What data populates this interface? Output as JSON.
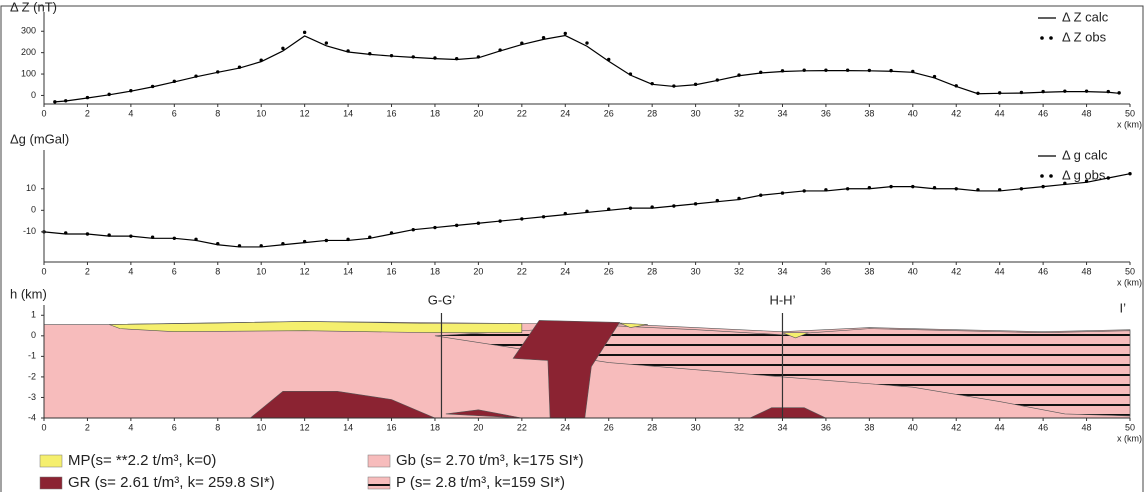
{
  "chart_data": [
    {
      "type": "line",
      "ylabel": "Δ Z (nT)",
      "xlabel": "x (km)",
      "x": [
        0.5,
        1,
        2,
        3,
        4,
        5,
        6,
        7,
        8,
        9,
        10,
        11,
        12,
        13,
        14,
        15,
        16,
        17,
        18,
        19,
        20,
        21,
        22,
        23,
        24,
        25,
        26,
        27,
        28,
        29,
        30,
        31,
        32,
        33,
        34,
        35,
        36,
        37,
        38,
        39,
        40,
        41,
        42,
        43,
        44,
        45,
        46,
        47,
        48,
        49,
        49.5
      ],
      "series": [
        {
          "name": "Δ Z calc",
          "color": "#000000",
          "style": "line",
          "values": [
            -30,
            -26,
            -12,
            3,
            20,
            40,
            63,
            87,
            108,
            128,
            158,
            208,
            278,
            232,
            203,
            192,
            184,
            178,
            172,
            168,
            176,
            208,
            238,
            262,
            280,
            230,
            160,
            95,
            52,
            42,
            50,
            70,
            92,
            105,
            112,
            115,
            116,
            116,
            115,
            113,
            108,
            82,
            42,
            8,
            10,
            11,
            15,
            18,
            18,
            15,
            10
          ]
        },
        {
          "name": "Δ Z obs",
          "color": "#000000",
          "style": "dots",
          "values": [
            -30,
            -25,
            -10,
            5,
            22,
            42,
            66,
            90,
            110,
            132,
            165,
            220,
            295,
            245,
            208,
            195,
            186,
            180,
            175,
            172,
            180,
            212,
            244,
            270,
            290,
            245,
            168,
            100,
            55,
            44,
            52,
            72,
            95,
            108,
            115,
            118,
            118,
            118,
            117,
            116,
            112,
            88,
            45,
            10,
            12,
            14,
            18,
            20,
            20,
            18,
            12
          ]
        }
      ],
      "xlim": [
        0,
        50
      ],
      "xticks": [
        0,
        2,
        4,
        6,
        8,
        10,
        12,
        14,
        16,
        18,
        20,
        22,
        24,
        26,
        28,
        30,
        32,
        34,
        36,
        38,
        40,
        42,
        44,
        46,
        48,
        50
      ],
      "ylim": [
        -40,
        390
      ],
      "yticks": [
        0,
        100,
        200,
        300
      ],
      "legend": "upper right"
    },
    {
      "type": "line",
      "ylabel": "Δg (mGal)",
      "xlabel": "x (km)",
      "x": [
        0,
        1,
        2,
        3,
        4,
        5,
        6,
        7,
        8,
        9,
        10,
        11,
        12,
        13,
        14,
        15,
        16,
        17,
        18,
        19,
        20,
        21,
        22,
        23,
        24,
        25,
        26,
        27,
        28,
        29,
        30,
        31,
        32,
        33,
        34,
        35,
        36,
        37,
        38,
        39,
        40,
        41,
        42,
        43,
        44,
        45,
        46,
        47,
        48,
        49,
        50
      ],
      "series": [
        {
          "name": "Δ g calc",
          "color": "#000000",
          "style": "line",
          "values": [
            -10,
            -11,
            -11,
            -12,
            -12,
            -13,
            -13,
            -14,
            -16,
            -17,
            -17,
            -16,
            -15,
            -14,
            -14,
            -13,
            -11,
            -9,
            -8,
            -7,
            -6,
            -5,
            -4,
            -3,
            -2,
            -1,
            0,
            1,
            1,
            2,
            3,
            4,
            5,
            7,
            8,
            9,
            9,
            10,
            10,
            11,
            11,
            10,
            10,
            9,
            9,
            10,
            11,
            12,
            13,
            15,
            17
          ]
        },
        {
          "name": "Δ g obs",
          "color": "#000000",
          "style": "dots",
          "values": [
            -10,
            -10.5,
            -11,
            -11.5,
            -12,
            -12.5,
            -13,
            -13.5,
            -15.5,
            -16.5,
            -16.5,
            -15.5,
            -14.5,
            -14,
            -13.5,
            -12.5,
            -10.5,
            -9,
            -8,
            -7,
            -6,
            -5,
            -4,
            -3,
            -1.5,
            -0.5,
            0.5,
            1,
            1.5,
            2,
            3,
            4.5,
            5.5,
            7,
            8,
            9,
            9.5,
            10,
            10.5,
            11,
            11,
            10.5,
            10,
            9.5,
            9.5,
            10,
            11,
            12.5,
            13.5,
            15,
            17
          ]
        }
      ],
      "xlim": [
        0,
        50
      ],
      "xticks": [
        0,
        2,
        4,
        6,
        8,
        10,
        12,
        14,
        16,
        18,
        20,
        22,
        24,
        26,
        28,
        30,
        32,
        34,
        36,
        38,
        40,
        42,
        44,
        46,
        48,
        50
      ],
      "ylim": [
        -24,
        28
      ],
      "yticks": [
        10,
        0,
        -10
      ],
      "legend": "upper right"
    },
    {
      "type": "section",
      "ylabel": "h (km)",
      "xlabel": "x (km)",
      "xlim": [
        0,
        50
      ],
      "xticks": [
        0,
        2,
        4,
        6,
        8,
        10,
        12,
        14,
        16,
        18,
        20,
        22,
        24,
        26,
        28,
        30,
        32,
        34,
        36,
        38,
        40,
        42,
        44,
        46,
        48,
        50
      ],
      "ylim": [
        -4,
        1.5
      ],
      "yticks": [
        1,
        0,
        -1,
        -2,
        -3,
        -4
      ],
      "units": [
        {
          "name": "Gb (s= 2.70 t/m³, k=175 SI*)",
          "color": "#f7bcbc",
          "bodies": [
            [
              [
                0,
                0.55
              ],
              [
                3,
                0.55
              ],
              [
                12,
                0.7
              ],
              [
                22,
                0.6
              ],
              [
                26,
                0.6
              ],
              [
                30,
                0.4
              ],
              [
                34,
                0.2
              ],
              [
                38,
                0.4
              ],
              [
                42,
                0.3
              ],
              [
                46,
                0.2
              ],
              [
                50,
                0.3
              ],
              [
                50,
                -4
              ],
              [
                0,
                -4
              ]
            ]
          ]
        },
        {
          "name": "P (s= 2.8 t/m³, k=159 SI*)",
          "color": "#f7bcbc",
          "pattern": "hatch",
          "bodies": [
            [
              [
                18,
                0
              ],
              [
                26,
                0.5
              ],
              [
                30,
                0.3
              ],
              [
                34,
                0.05
              ],
              [
                38,
                0.35
              ],
              [
                42,
                0.25
              ],
              [
                46,
                0.15
              ],
              [
                50,
                0.25
              ],
              [
                50,
                -3.9
              ],
              [
                47,
                -3.8
              ],
              [
                44,
                -3.2
              ],
              [
                40,
                -2.5
              ],
              [
                34,
                -2
              ],
              [
                26,
                -1.3
              ]
            ]
          ]
        },
        {
          "name": "MP(s= **2.2 t/m³, k=0)",
          "color": "#f5ef6e",
          "bodies": [
            [
              [
                3,
                0.55
              ],
              [
                8,
                0.62
              ],
              [
                12,
                0.7
              ],
              [
                18,
                0.6
              ],
              [
                22,
                0.6
              ],
              [
                22,
                0.15
              ],
              [
                18,
                0.15
              ],
              [
                12,
                0.25
              ],
              [
                6,
                0.2
              ],
              [
                3.5,
                0.35
              ]
            ],
            [
              [
                26.5,
                0.62
              ],
              [
                27.8,
                0.55
              ],
              [
                27,
                0.4
              ]
            ],
            [
              [
                34,
                0.15
              ],
              [
                35.2,
                0.15
              ],
              [
                34.6,
                -0.1
              ]
            ]
          ]
        },
        {
          "name": "GR (s= 2.61 t/m³, k= 259.8 SI*)",
          "color": "#8b2332",
          "bodies": [
            [
              [
                22.8,
                0.75
              ],
              [
                26.5,
                0.65
              ],
              [
                25.2,
                -1.5
              ],
              [
                24.9,
                -4
              ],
              [
                23.3,
                -4
              ],
              [
                23.2,
                -1.2
              ],
              [
                21.6,
                -1.1
              ]
            ],
            [
              [
                9.5,
                -4
              ],
              [
                11,
                -2.7
              ],
              [
                13.5,
                -2.7
              ],
              [
                16,
                -3.1
              ],
              [
                18,
                -4
              ]
            ],
            [
              [
                18.5,
                -3.8
              ],
              [
                20,
                -3.6
              ],
              [
                22,
                -4
              ]
            ],
            [
              [
                32.5,
                -4
              ],
              [
                33.5,
                -3.5
              ],
              [
                35,
                -3.5
              ],
              [
                36,
                -4
              ]
            ]
          ]
        }
      ],
      "sections": [
        {
          "label": "G-G’",
          "x": 18.3
        },
        {
          "label": "H-H’",
          "x": 34
        }
      ],
      "end_label": "I’"
    }
  ]
}
